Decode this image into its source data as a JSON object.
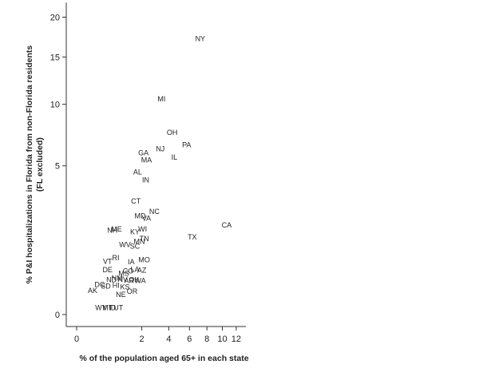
{
  "chart_data": {
    "type": "scatter",
    "title": "",
    "xlabel": "% of the population aged 65+ in each state",
    "ylabel": "% P&I hospitalizations in Florida from non-Florida residents",
    "ylabel_sub": "(FL excluded)",
    "x_scale": "sqrt",
    "y_scale": "sqrt",
    "xlim": [
      0,
      13.5
    ],
    "ylim": [
      0,
      22
    ],
    "x_ticks": [
      0,
      2,
      4,
      6,
      8,
      10,
      12
    ],
    "y_ticks": [
      0,
      5,
      10,
      15,
      20
    ],
    "grid": false,
    "points": [
      {
        "label": "NY",
        "x": 7.2,
        "y": 17.2
      },
      {
        "label": "MI",
        "x": 3.4,
        "y": 10.5
      },
      {
        "label": "OH",
        "x": 4.3,
        "y": 7.5
      },
      {
        "label": "PA",
        "x": 5.7,
        "y": 6.5
      },
      {
        "label": "NJ",
        "x": 3.3,
        "y": 6.2
      },
      {
        "label": "IL",
        "x": 4.5,
        "y": 5.6
      },
      {
        "label": "GA",
        "x": 2.1,
        "y": 5.9
      },
      {
        "label": "MA",
        "x": 2.3,
        "y": 5.4
      },
      {
        "label": "AL",
        "x": 1.75,
        "y": 4.6
      },
      {
        "label": "IN",
        "x": 2.25,
        "y": 4.1
      },
      {
        "label": "CT",
        "x": 1.65,
        "y": 2.9
      },
      {
        "label": "NC",
        "x": 2.85,
        "y": 2.4
      },
      {
        "label": "MD",
        "x": 1.9,
        "y": 2.2
      },
      {
        "label": "VA",
        "x": 2.3,
        "y": 2.1
      },
      {
        "label": "CA",
        "x": 10.6,
        "y": 1.8
      },
      {
        "label": "NH",
        "x": 0.6,
        "y": 1.6
      },
      {
        "label": "ME",
        "x": 0.75,
        "y": 1.65
      },
      {
        "label": "WI",
        "x": 2.05,
        "y": 1.65
      },
      {
        "label": "KY",
        "x": 1.6,
        "y": 1.55
      },
      {
        "label": "TX",
        "x": 6.3,
        "y": 1.35
      },
      {
        "label": "TN",
        "x": 2.15,
        "y": 1.3
      },
      {
        "label": "MN",
        "x": 1.85,
        "y": 1.2
      },
      {
        "label": "WV",
        "x": 1.1,
        "y": 1.1
      },
      {
        "label": "SC",
        "x": 1.6,
        "y": 1.05
      },
      {
        "label": "VT",
        "x": 0.45,
        "y": 0.64
      },
      {
        "label": "RI",
        "x": 0.72,
        "y": 0.73
      },
      {
        "label": "IA",
        "x": 1.4,
        "y": 0.63
      },
      {
        "label": "MO",
        "x": 2.15,
        "y": 0.68
      },
      {
        "label": "DE",
        "x": 0.45,
        "y": 0.45
      },
      {
        "label": "LA",
        "x": 1.6,
        "y": 0.46
      },
      {
        "label": "AZ",
        "x": 2.0,
        "y": 0.44
      },
      {
        "label": "CO",
        "x": 1.25,
        "y": 0.43
      },
      {
        "label": "MS",
        "x": 1.05,
        "y": 0.38
      },
      {
        "label": "NM",
        "x": 0.77,
        "y": 0.3
      },
      {
        "label": "NV",
        "x": 1.0,
        "y": 0.28
      },
      {
        "label": "ND",
        "x": 0.57,
        "y": 0.27
      },
      {
        "label": "AR",
        "x": 1.3,
        "y": 0.26
      },
      {
        "label": "OK",
        "x": 1.55,
        "y": 0.27
      },
      {
        "label": "WA",
        "x": 1.9,
        "y": 0.26
      },
      {
        "label": "HI",
        "x": 0.73,
        "y": 0.19
      },
      {
        "label": "DC",
        "x": 0.25,
        "y": 0.2
      },
      {
        "label": "SD",
        "x": 0.4,
        "y": 0.18
      },
      {
        "label": "KS",
        "x": 1.1,
        "y": 0.17
      },
      {
        "label": "OR",
        "x": 1.45,
        "y": 0.12
      },
      {
        "label": "AK",
        "x": 0.12,
        "y": 0.13
      },
      {
        "label": "NE",
        "x": 0.92,
        "y": 0.09
      },
      {
        "label": "UT",
        "x": 0.82,
        "y": 0.01
      },
      {
        "label": "ID",
        "x": 0.6,
        "y": 0.01
      },
      {
        "label": "MT",
        "x": 0.45,
        "y": 0.01
      },
      {
        "label": "WY",
        "x": 0.28,
        "y": 0.01
      }
    ]
  }
}
